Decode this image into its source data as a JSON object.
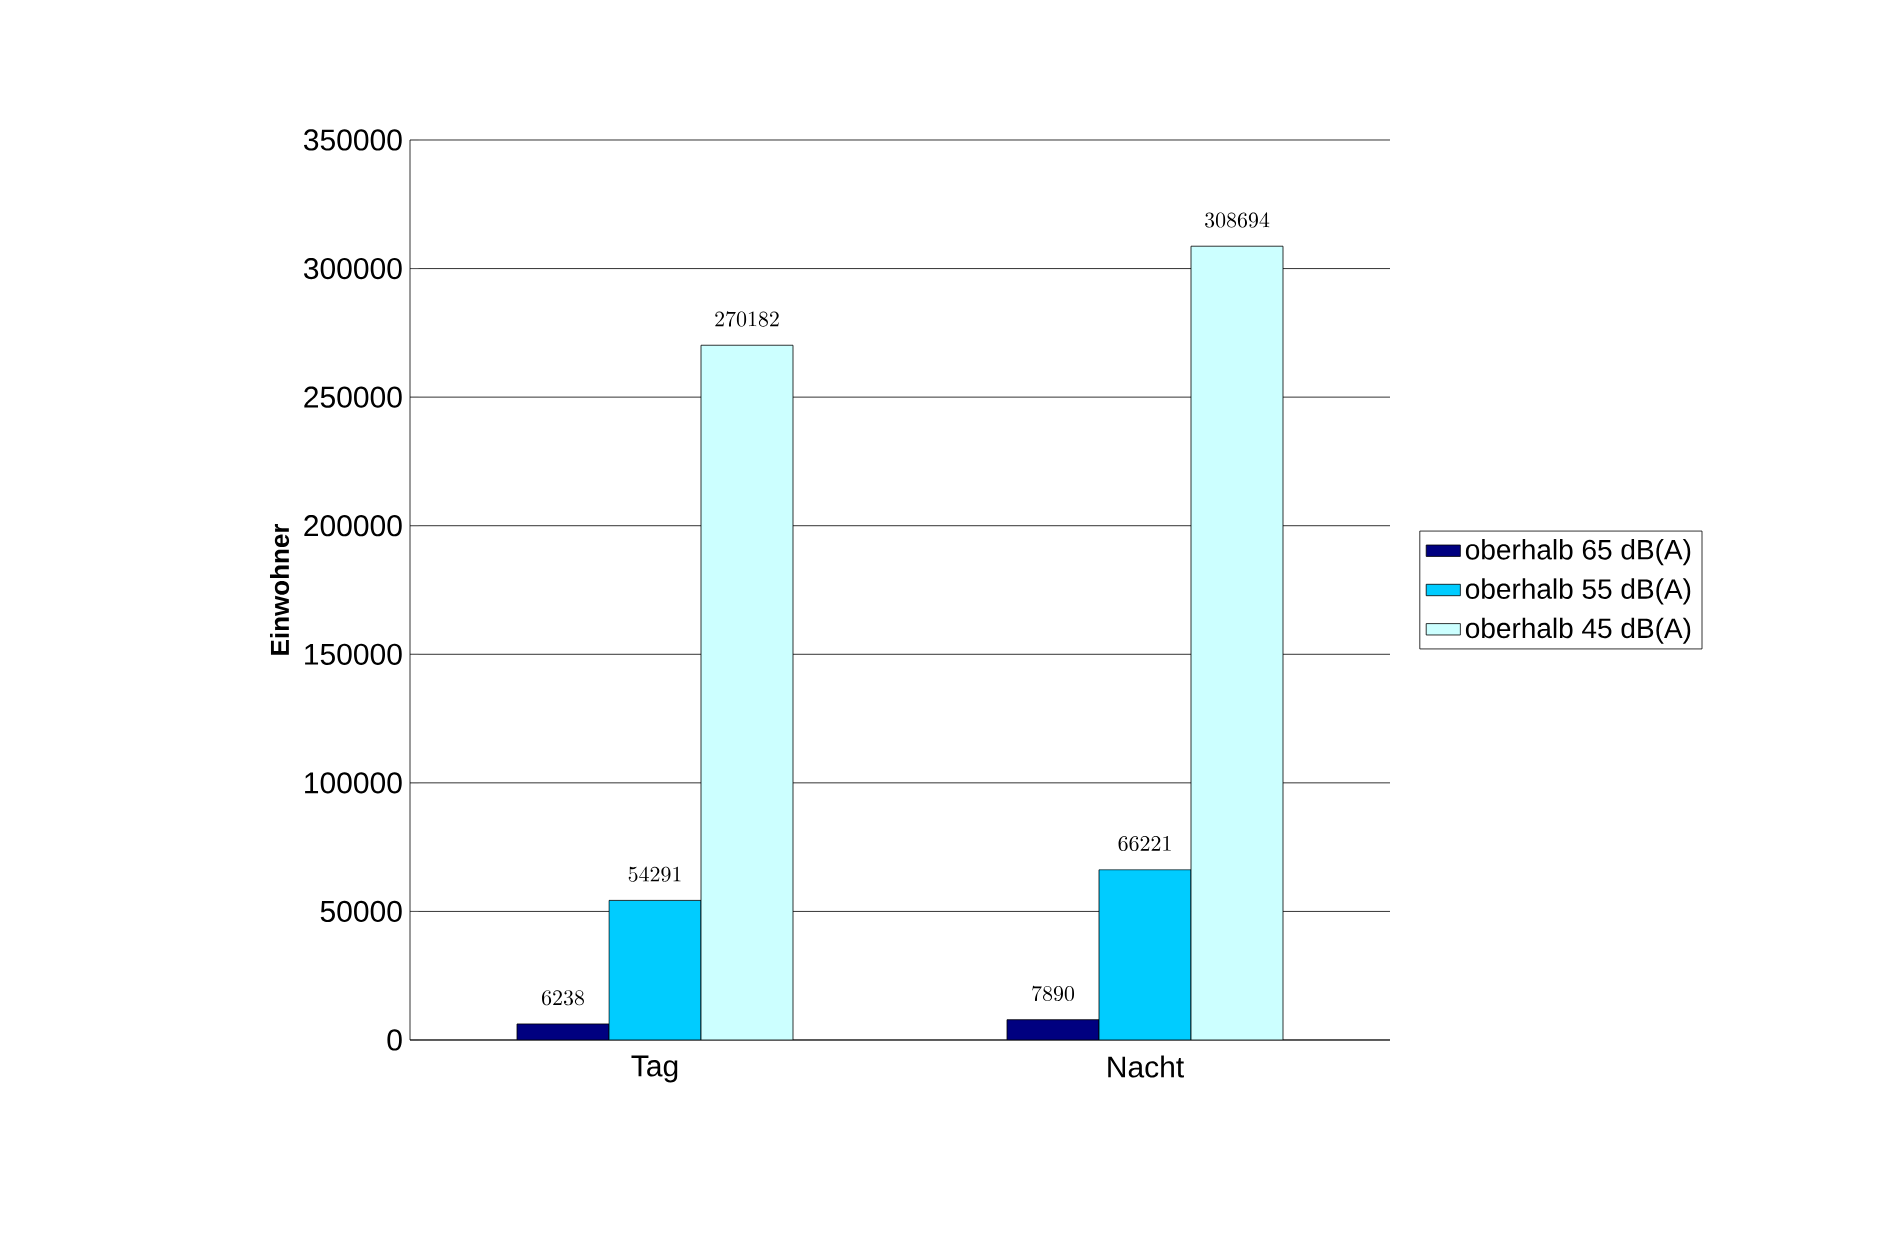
{
  "chart_data": {
    "type": "bar",
    "ylabel": "Einwohner",
    "categories": [
      "Tag",
      "Nacht"
    ],
    "series": [
      {
        "name": "oberhalb 65 dB(A)",
        "color": "#000080",
        "values": [
          6238,
          7890
        ]
      },
      {
        "name": "oberhalb 55 dB(A)",
        "color": "#00ccff",
        "values": [
          54291,
          66221
        ]
      },
      {
        "name": "oberhalb 45 dB(A)",
        "color": "#ccffff",
        "values": [
          270182,
          308694
        ]
      }
    ],
    "ylim": [
      0,
      350000
    ],
    "yticks": [
      0,
      50000,
      100000,
      150000,
      200000,
      250000,
      300000,
      350000
    ],
    "grid": "y",
    "legend": "right",
    "data_labels": true
  }
}
